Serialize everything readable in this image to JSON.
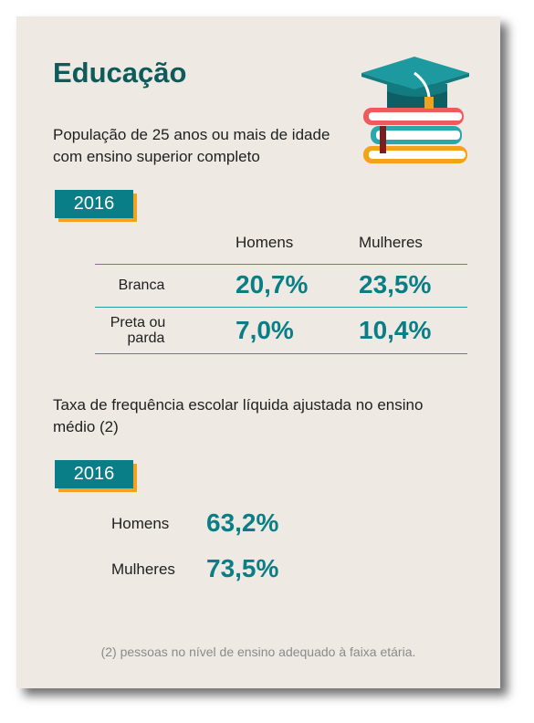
{
  "title": "Educação",
  "section1": {
    "description": "População de 25 anos ou mais de idade com ensino superior completo",
    "year": "2016",
    "col_homens": "Homens",
    "col_mulheres": "Mulheres",
    "rows": [
      {
        "label": "Branca",
        "homens": "20,7%",
        "mulheres": "23,5%"
      },
      {
        "label_line1": "Preta ou",
        "label_line2": "parda",
        "homens": "7,0%",
        "mulheres": "10,4%"
      }
    ]
  },
  "section2": {
    "description": "Taxa de frequência escolar líquida ajustada no ensino médio (2)",
    "year": "2016",
    "rows": [
      {
        "label": "Homens",
        "value": "63,2%"
      },
      {
        "label": "Mulheres",
        "value": "73,5%"
      }
    ]
  },
  "footnote": "(2) pessoas no nível de ensino adequado à faixa etária.",
  "icon": "graduation-books-icon",
  "colors": {
    "teal": "#0a7e86",
    "dark_teal": "#0f5a5a",
    "orange": "#f3a31b",
    "background": "#efe9e3"
  }
}
